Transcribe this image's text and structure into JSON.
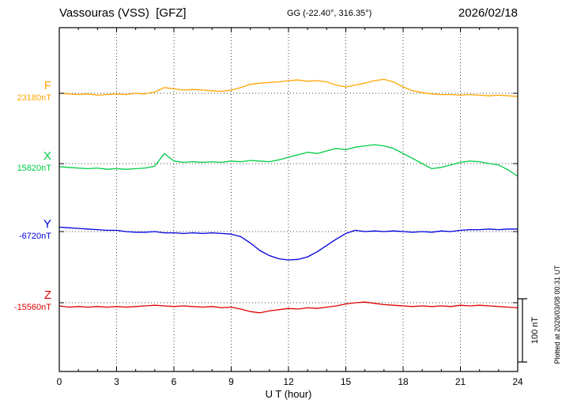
{
  "header": {
    "title": "Vassouras (VSS)  [GFZ]",
    "coordinates": "GG (-22.40°, 316.35°)",
    "date": "2026/02/18"
  },
  "chart_data": {
    "type": "line",
    "title": "Vassouras (VSS)  [GFZ]",
    "subtitle": "GG (-22.40°, 316.35°)",
    "date": "2026/02/18",
    "xlabel": "U T (hour)",
    "x_range": [
      0,
      24
    ],
    "x_ticks": [
      0,
      3,
      6,
      9,
      12,
      15,
      18,
      21,
      24
    ],
    "grid": "dotted-vertical-at-3h-and-horizontal-baselines",
    "scale_bar": {
      "label": "100 nT",
      "nT": 100
    },
    "plotted_note": "Plotted at 2026/03/08 00:31 UT",
    "x_hours": [
      0,
      0.5,
      1,
      1.5,
      2,
      2.5,
      3,
      3.5,
      4,
      4.5,
      5,
      5.5,
      6,
      6.5,
      7,
      7.5,
      8,
      8.5,
      9,
      9.5,
      10,
      10.5,
      11,
      11.5,
      12,
      12.5,
      13,
      13.5,
      14,
      14.5,
      15,
      15.5,
      16,
      16.5,
      17,
      17.5,
      18,
      18.5,
      19,
      19.5,
      20,
      20.5,
      21,
      21.5,
      22,
      22.5,
      23,
      23.5,
      24
    ],
    "series": [
      {
        "name": "F",
        "baseline_label": "23180nT",
        "baseline_nt": 23180,
        "color": "#ffa500",
        "offsets_nt": [
          0,
          -1,
          -2,
          -1,
          -3,
          -2,
          -1,
          -2,
          0,
          -1,
          2,
          9,
          7,
          5,
          6,
          5,
          4,
          3,
          5,
          9,
          14,
          16,
          17,
          18,
          20,
          21,
          19,
          20,
          18,
          13,
          10,
          13,
          16,
          20,
          22,
          18,
          10,
          4,
          1,
          -1,
          -2,
          -2,
          -3,
          -2,
          -3,
          -4,
          -3,
          -4,
          -5
        ]
      },
      {
        "name": "X",
        "baseline_label": "15820nT",
        "baseline_nt": 15820,
        "color": "#00cc44",
        "offsets_nt": [
          -5,
          -6,
          -7,
          -8,
          -7,
          -9,
          -8,
          -9,
          -8,
          -7,
          -4,
          16,
          4,
          2,
          3,
          2,
          3,
          2,
          4,
          3,
          5,
          4,
          3,
          6,
          10,
          14,
          18,
          16,
          20,
          24,
          22,
          26,
          28,
          30,
          28,
          24,
          16,
          8,
          0,
          -8,
          -6,
          -2,
          2,
          4,
          3,
          0,
          -2,
          -10,
          -20
        ]
      },
      {
        "name": "Y",
        "baseline_label": "-6720nT",
        "baseline_nt": -6720,
        "color": "#0000dd",
        "offsets_nt": [
          7,
          6,
          5,
          4,
          3,
          2,
          2,
          0,
          -1,
          -1,
          0,
          -2,
          -2,
          -3,
          -2,
          -3,
          -2,
          -3,
          -4,
          -8,
          -18,
          -30,
          -38,
          -43,
          -45,
          -44,
          -40,
          -32,
          -22,
          -12,
          -3,
          2,
          0,
          1,
          0,
          1,
          0,
          -1,
          0,
          -1,
          1,
          0,
          2,
          3,
          3,
          4,
          3,
          4,
          4
        ]
      },
      {
        "name": "Z",
        "baseline_label": "-15560nT",
        "baseline_nt": -15560,
        "color": "#e00000",
        "offsets_nt": [
          -5,
          -7,
          -6,
          -7,
          -6,
          -7,
          -6,
          -7,
          -6,
          -5,
          -4,
          -5,
          -6,
          -5,
          -6,
          -7,
          -6,
          -8,
          -7,
          -10,
          -14,
          -16,
          -13,
          -11,
          -9,
          -10,
          -8,
          -9,
          -7,
          -5,
          -2,
          0,
          1,
          -1,
          -3,
          -4,
          -5,
          -6,
          -5,
          -6,
          -5,
          -6,
          -4,
          -5,
          -4,
          -5,
          -6,
          -7,
          -8
        ]
      }
    ]
  }
}
